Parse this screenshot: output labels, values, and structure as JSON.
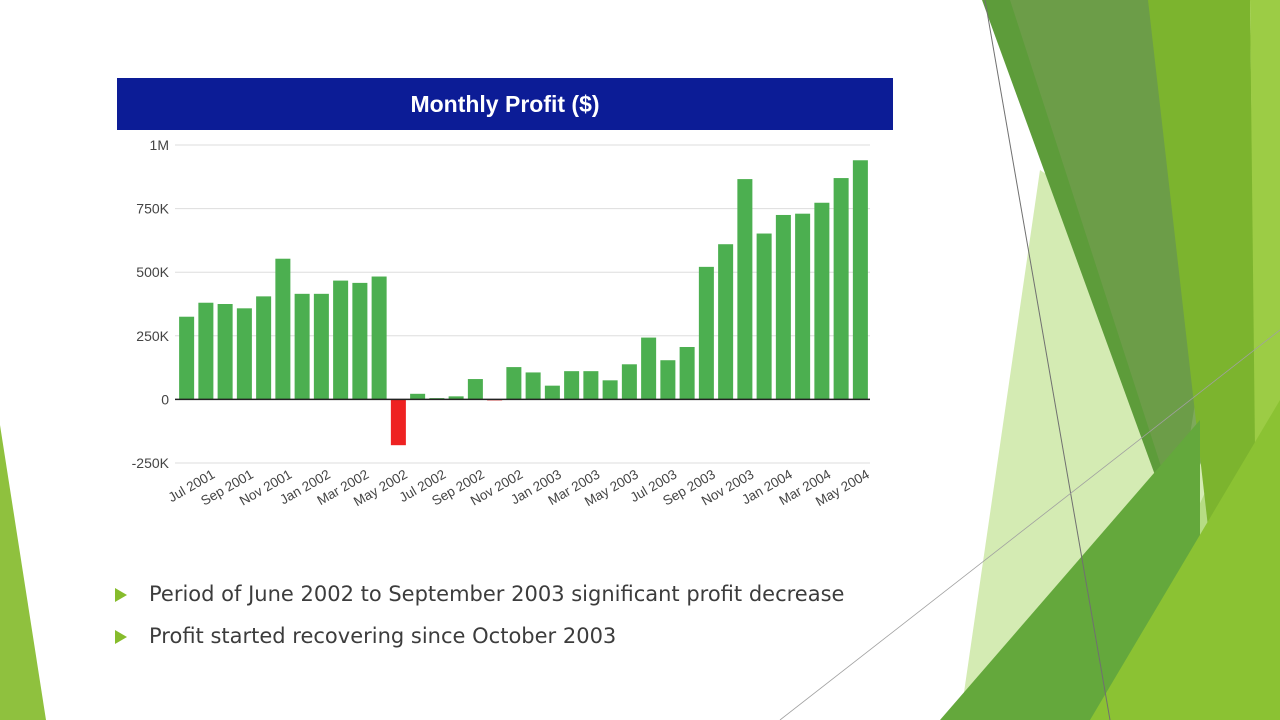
{
  "chart_data": {
    "type": "bar",
    "title": "Monthly Profit ($)",
    "xlabel": "",
    "ylabel": "",
    "ylim": [
      -250000,
      1000000
    ],
    "yticks": [
      -250000,
      0,
      250000,
      500000,
      750000,
      1000000
    ],
    "ytick_labels": [
      "-250K",
      "0",
      "250K",
      "500K",
      "750K",
      "1M"
    ],
    "grid": true,
    "legend": "none",
    "colors": {
      "positive": "#4caf50",
      "negative": "#ee2222"
    },
    "categories": [
      "Jun 2001",
      "Jul 2001",
      "Aug 2001",
      "Sep 2001",
      "Oct 2001",
      "Nov 2001",
      "Dec 2001",
      "Jan 2002",
      "Feb 2002",
      "Mar 2002",
      "Apr 2002",
      "May 2002",
      "Jun 2002",
      "Jul 2002",
      "Aug 2002",
      "Sep 2002",
      "Oct 2002",
      "Nov 2002",
      "Dec 2002",
      "Jan 2003",
      "Feb 2003",
      "Mar 2003",
      "Apr 2003",
      "May 2003",
      "Jun 2003",
      "Jul 2003",
      "Aug 2003",
      "Sep 2003",
      "Oct 2003",
      "Nov 2003",
      "Dec 2003",
      "Jan 2004",
      "Feb 2004",
      "Mar 2004",
      "Apr 2004",
      "May 2004"
    ],
    "values": [
      325000,
      380000,
      375000,
      358000,
      405000,
      553000,
      415000,
      415000,
      467000,
      458000,
      483000,
      -180000,
      22000,
      5000,
      12000,
      80000,
      -3000,
      127000,
      106000,
      54000,
      111000,
      111000,
      75000,
      138000,
      243000,
      154000,
      206000,
      521000,
      610000,
      866000,
      652000,
      725000,
      730000,
      773000,
      870000,
      940000
    ],
    "xtick_labels": [
      "Jul 2001",
      "Sep 2001",
      "Nov 2001",
      "Jan 2002",
      "Mar 2002",
      "May 2002",
      "Jul 2002",
      "Sep 2002",
      "Nov 2002",
      "Jan 2003",
      "Mar 2003",
      "May 2003",
      "Jul 2003",
      "Sep 2003",
      "Nov 2003",
      "Jan 2004",
      "Mar 2004",
      "May 2004"
    ]
  },
  "bullets": [
    "Period of June 2002 to September 2003 significant profit decrease",
    "Profit started recovering since October 2003"
  ],
  "theme": {
    "accent_green": "#86bc2c",
    "title_bar": "#0c1c96"
  }
}
